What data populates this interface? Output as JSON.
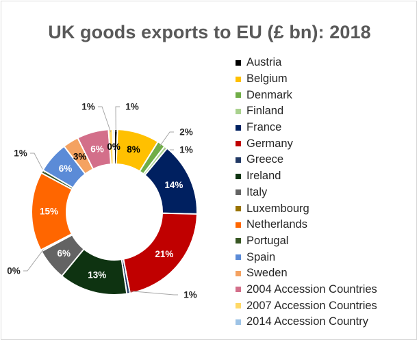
{
  "chart_data": {
    "type": "pie",
    "title": "UK goods exports to EU (£ bn): 2018",
    "series": [
      {
        "name": "Austria",
        "value": 0.6,
        "label": "1%",
        "color": "#000000"
      },
      {
        "name": "Belgium",
        "value": 8,
        "label": "8%",
        "color": "#ffc000"
      },
      {
        "name": "Denmark",
        "value": 1.5,
        "label": "2%",
        "color": "#70ad47"
      },
      {
        "name": "Finland",
        "value": 0.6,
        "label": "1%",
        "color": "#a9d18e"
      },
      {
        "name": "France",
        "value": 14,
        "label": "14%",
        "color": "#002060"
      },
      {
        "name": "Germany",
        "value": 21,
        "label": "21%",
        "color": "#c00000"
      },
      {
        "name": "Greece",
        "value": 0.6,
        "label": "1%",
        "color": "#203864"
      },
      {
        "name": "Ireland",
        "value": 13,
        "label": "13%",
        "color": "#0e3311"
      },
      {
        "name": "Italy",
        "value": 6,
        "label": "6%",
        "color": "#636363"
      },
      {
        "name": "Luxembourg",
        "value": 0.3,
        "label": "0%",
        "color": "#997300"
      },
      {
        "name": "Netherlands",
        "value": 15,
        "label": "15%",
        "color": "#ff6600"
      },
      {
        "name": "Portugal",
        "value": 0.6,
        "label": "1%",
        "color": "#375623"
      },
      {
        "name": "Spain",
        "value": 6,
        "label": "6%",
        "color": "#5b8bd7"
      },
      {
        "name": "Sweden",
        "value": 3,
        "label": "3%",
        "color": "#f4a261"
      },
      {
        "name": "2004 Accession Countries",
        "value": 6,
        "label": "6%",
        "color": "#d36f8a"
      },
      {
        "name": "2007 Accession Countries",
        "value": 0.8,
        "label": "1%",
        "color": "#ffd966"
      },
      {
        "name": "2014 Accession Country",
        "value": 0.3,
        "label": "0%",
        "color": "#9dc3e6"
      }
    ],
    "legend_position": "right"
  }
}
